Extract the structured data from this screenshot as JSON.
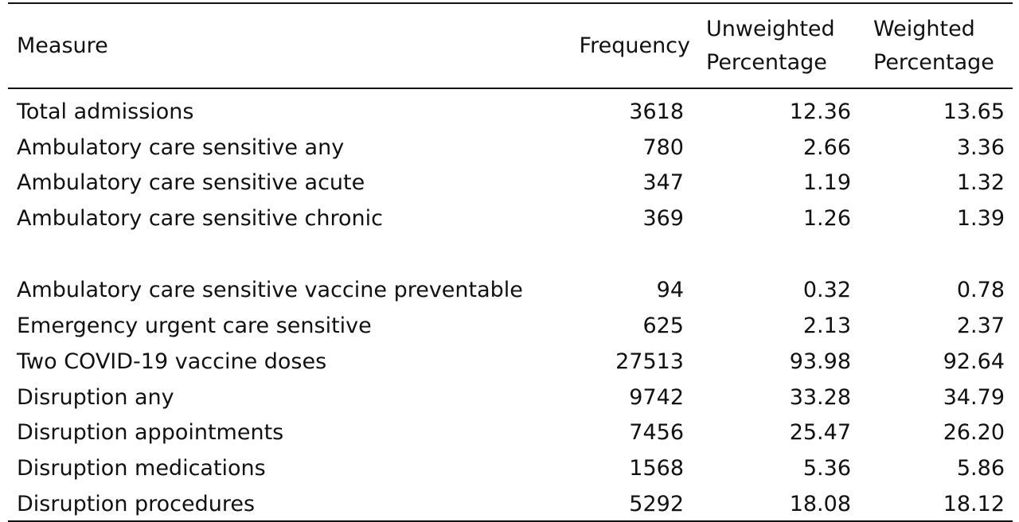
{
  "table": {
    "headers": {
      "measure": "Measure",
      "frequency": "Frequency",
      "unweighted_percentage": "Unweighted Percentage",
      "weighted_percentage": "Weighted Percentage"
    },
    "rows": [
      {
        "measure": "Total admissions",
        "frequency": "3618",
        "unweighted": "12.36",
        "weighted": "13.65"
      },
      {
        "measure": "Ambulatory care sensitive any",
        "frequency": "780",
        "unweighted": "2.66",
        "weighted": "3.36"
      },
      {
        "measure": "Ambulatory care sensitive acute",
        "frequency": "347",
        "unweighted": "1.19",
        "weighted": "1.32"
      },
      {
        "measure": "Ambulatory care sensitive chronic",
        "frequency": "369",
        "unweighted": "1.26",
        "weighted": "1.39"
      },
      {
        "measure": "Ambulatory care sensitive vaccine preventable",
        "frequency": "94",
        "unweighted": "0.32",
        "weighted": "0.78"
      },
      {
        "measure": "Emergency urgent care sensitive",
        "frequency": "625",
        "unweighted": "2.13",
        "weighted": "2.37"
      },
      {
        "measure": "Two COVID-19 vaccine doses",
        "frequency": "27513",
        "unweighted": "93.98",
        "weighted": "92.64"
      },
      {
        "measure": "Disruption any",
        "frequency": "9742",
        "unweighted": "33.28",
        "weighted": "34.79"
      },
      {
        "measure": "Disruption appointments",
        "frequency": "7456",
        "unweighted": "25.47",
        "weighted": "26.20"
      },
      {
        "measure": "Disruption medications",
        "frequency": "1568",
        "unweighted": "5.36",
        "weighted": "5.86"
      },
      {
        "measure": "Disruption procedures",
        "frequency": "5292",
        "unweighted": "18.08",
        "weighted": "18.12"
      }
    ]
  }
}
